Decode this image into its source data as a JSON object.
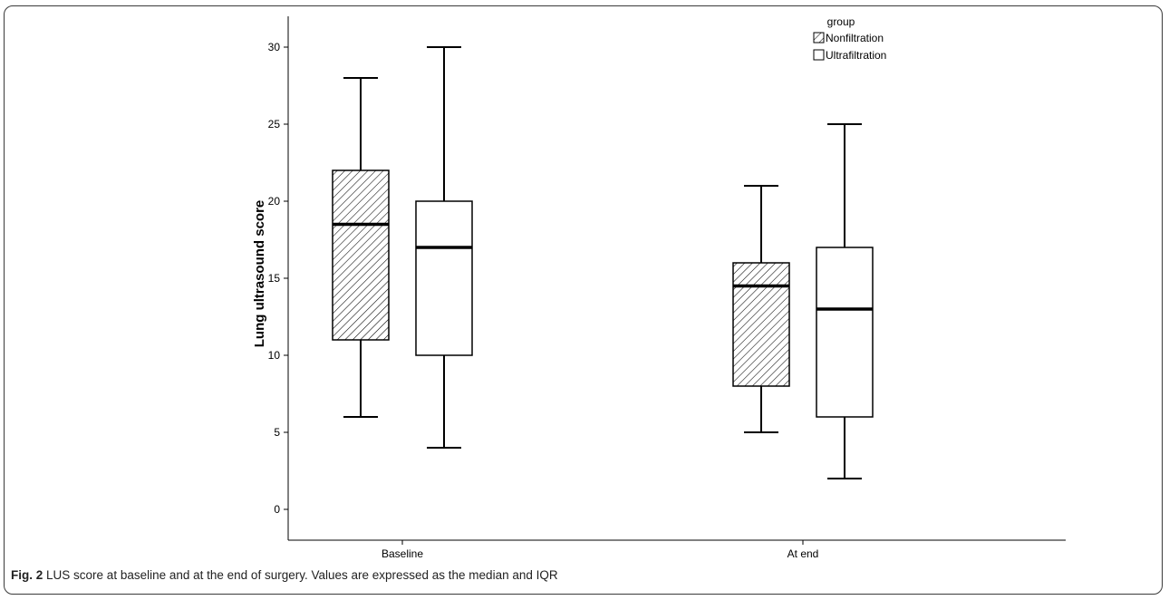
{
  "caption": {
    "label": "Fig. 2",
    "text": "LUS score at baseline and at the end of surgery. Values are expressed as the median and IQR"
  },
  "chart_data": {
    "type": "boxplot",
    "categories": [
      "Baseline",
      "At end"
    ],
    "ylabel": "Lung ultrasound score",
    "xlabel": "",
    "ylim": [
      -2,
      32
    ],
    "yticks": [
      0,
      5,
      10,
      15,
      20,
      25,
      30
    ],
    "grid": false,
    "legend": {
      "title": "group",
      "position": "top-right"
    },
    "series": [
      {
        "name": "Nonfiltration",
        "fill": "hatched",
        "boxes": [
          {
            "category": "Baseline",
            "min": 6,
            "q1": 11,
            "median": 18.5,
            "q3": 22,
            "max": 28
          },
          {
            "category": "At end",
            "min": 5,
            "q1": 8,
            "median": 14.5,
            "q3": 16,
            "max": 21
          }
        ]
      },
      {
        "name": "Ultrafiltration",
        "fill": "white",
        "boxes": [
          {
            "category": "Baseline",
            "min": 4,
            "q1": 10,
            "median": 17,
            "q3": 20,
            "max": 30
          },
          {
            "category": "At end",
            "min": 2,
            "q1": 6,
            "median": 13,
            "q3": 17,
            "max": 25
          }
        ]
      }
    ]
  },
  "colors": {
    "stroke": "#000000",
    "hatch": "#000000",
    "frame": "#3a3a3a"
  }
}
